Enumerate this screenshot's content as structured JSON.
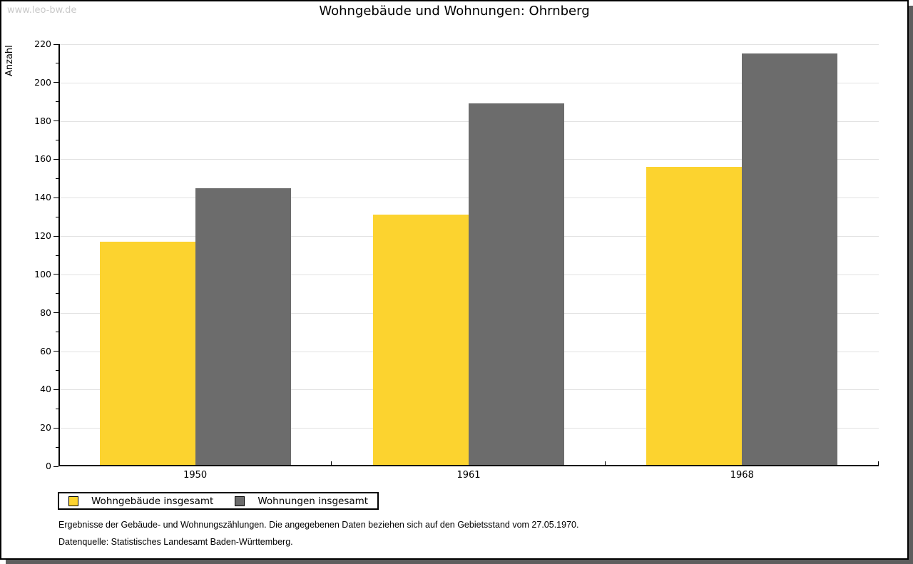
{
  "watermark": "www.leo-bw.de",
  "chart_data": {
    "type": "bar",
    "title": "Wohngebäude und Wohnungen: Ohrnberg",
    "categories": [
      "1950",
      "1961",
      "1968"
    ],
    "series": [
      {
        "name": "Wohngebäude insgesamt",
        "color": "#FCD32F",
        "values": [
          117,
          131,
          156
        ]
      },
      {
        "name": "Wohnungen insgesamt",
        "color": "#6C6C6C",
        "values": [
          145,
          189,
          215
        ]
      }
    ],
    "xlabel": "",
    "ylabel": "Anzahl",
    "ylim": [
      0,
      220
    ],
    "ytick_step": 20,
    "yminor_step": 10,
    "grid": "horizontal-major-only",
    "legend_position": "bottom-left"
  },
  "footnotes": {
    "line1": "Ergebnisse der Gebäude- und Wohnungszählungen. Die angegebenen Daten beziehen sich auf den Gebietsstand vom 27.05.1970.",
    "line2": "Datenquelle: Statistisches Landesamt Baden-Württemberg."
  },
  "colors": {
    "grid": "#e2e2e2",
    "axis": "#000000",
    "watermark": "#c9c9c9",
    "shadow": "#5e5e5e",
    "background": "#ffffff"
  }
}
